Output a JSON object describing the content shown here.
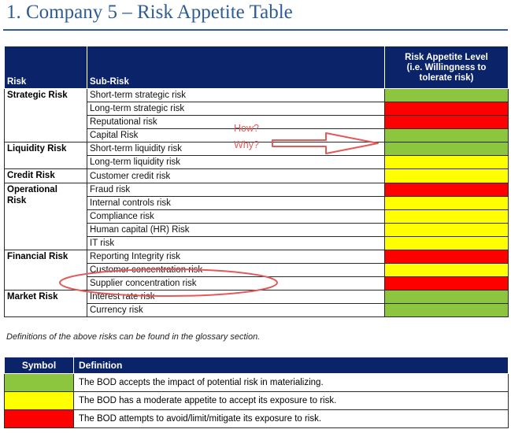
{
  "title": "1. Company 5 – Risk Appetite Table",
  "risk_table": {
    "headers": {
      "risk": "Risk",
      "sub_risk": "Sub-Risk",
      "level_line1": "Risk Appetite Level",
      "level_line2": "(i.e. Willingness to",
      "level_line3": "tolerate risk)"
    },
    "groups": [
      {
        "category": "Strategic Risk",
        "rows": [
          {
            "sub": "Short-term strategic risk",
            "level": "green"
          },
          {
            "sub": "Long-term strategic risk",
            "level": "red"
          },
          {
            "sub": "Reputational risk",
            "level": "red"
          },
          {
            "sub": "Capital Risk",
            "level": "green"
          }
        ]
      },
      {
        "category": "Liquidity Risk",
        "rows": [
          {
            "sub": "Short-term liquidity risk",
            "level": "green"
          },
          {
            "sub": "Long-term liquidity risk",
            "level": "yellow"
          }
        ]
      },
      {
        "category": "Credit Risk",
        "rows": [
          {
            "sub": "Customer credit risk",
            "level": "yellow"
          }
        ]
      },
      {
        "category_line1": "Operational",
        "category_line2": "Risk",
        "rows": [
          {
            "sub": "Fraud risk",
            "level": "red"
          },
          {
            "sub": "Internal controls risk",
            "level": "yellow"
          },
          {
            "sub": "Compliance risk",
            "level": "yellow"
          },
          {
            "sub": "Human capital (HR) Risk",
            "level": "yellow"
          },
          {
            "sub": "IT risk",
            "level": "yellow"
          }
        ]
      },
      {
        "category": "Financial Risk",
        "rows": [
          {
            "sub": "Reporting Integrity risk",
            "level": "red"
          },
          {
            "sub": "Customer concentration risk",
            "level": "yellow"
          },
          {
            "sub": "Supplier concentration risk",
            "level": "red"
          }
        ]
      },
      {
        "category": "Market Risk",
        "rows": [
          {
            "sub": "Interest rate risk",
            "level": "green"
          },
          {
            "sub": "Currency risk",
            "level": "green"
          }
        ]
      }
    ]
  },
  "annotations": {
    "question1": "How?",
    "question2": "Why?"
  },
  "definitions_note": "Definitions of the above risks can be found in the glossary section.",
  "legend": {
    "headers": {
      "symbol": "Symbol",
      "definition": "Definition"
    },
    "rows": [
      {
        "color": "green",
        "text": "The BOD accepts the impact of potential risk in materializing."
      },
      {
        "color": "yellow",
        "text": "The BOD has a moderate appetite to accept its exposure to risk."
      },
      {
        "color": "red",
        "text": "The BOD attempts to avoid/limit/mitigate its exposure to risk."
      }
    ]
  },
  "colors": {
    "green": "#8cc63f",
    "yellow": "#ffff00",
    "red": "#ff0000",
    "header": "#0b2469",
    "title": "#2e5d96",
    "annotation": "#e35a5a"
  }
}
